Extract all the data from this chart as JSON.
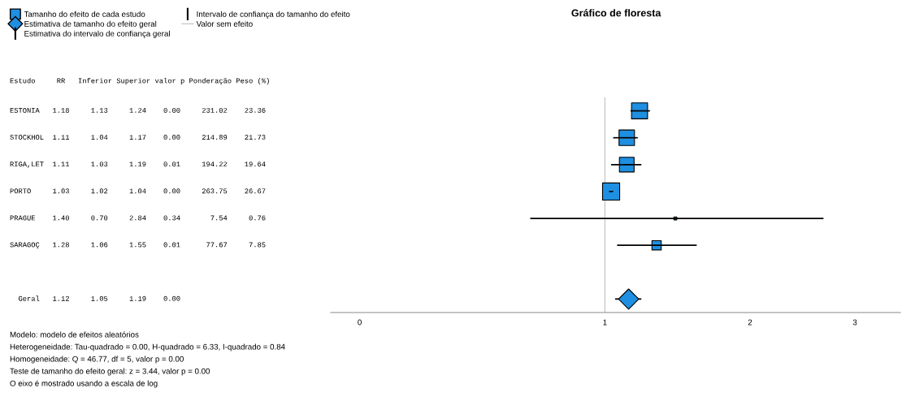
{
  "chart_data": {
    "type": "scatter",
    "title": "Gráfico de floresta",
    "orientation": "horizontal",
    "categories": [
      null,
      null,
      null,
      null,
      null,
      null,
      null,
      null
    ],
    "series": [
      {
        "name": "Tamanho do efeito de cada estudo",
        "type": "bubble",
        "color": "#1e8fe1",
        "marker": "square",
        "values": [
          1.18,
          1.11,
          1.11,
          1.03,
          1.4,
          1.28,
          null,
          null
        ],
        "errors": [
          [
            1.13,
            1.24
          ],
          [
            1.04,
            1.17
          ],
          [
            1.03,
            1.19
          ],
          [
            1.02,
            1.04
          ],
          [
            0.7,
            2.84
          ],
          [
            1.06,
            1.55
          ],
          null,
          null
        ],
        "sizes": [
          0.876,
          0.815,
          0.736,
          1,
          0.028,
          0.294,
          null,
          null
        ]
      },
      {
        "name": "Estimativa de tamanho do efeito geral",
        "color": "#1e8fe1",
        "marker": "diamond",
        "values": [
          null,
          null,
          null,
          null,
          null,
          null,
          null,
          1.12
        ],
        "errors": [
          null,
          null,
          null,
          null,
          null,
          null,
          null,
          [
            1.05,
            1.19
          ]
        ]
      }
    ],
    "log": "x",
    "xlim": [
      0.27,
      4.1
    ],
    "xticks": [
      {
        "value": 0.31,
        "label": "0"
      },
      1,
      2,
      {
        "value": 3.3,
        "label": "3"
      }
    ],
    "tick_labels": "x",
    "grid": false,
    "legend": "top left",
    "ref_lines": [
      {
        "axis": "x",
        "value": 1,
        "label": "Valor sem efeito",
        "color": "#c8c8c8"
      }
    ],
    "annotations": [
      "Intervalo de confiança do tamanho do efeito",
      "Estimativa do intervalo de confiança geral",
      "Estudo     RR   Inferior Superior valor p Ponderação Peso (%)",
      "ESTONIA   1.18     1.13     1.24    0.00     231.02    23.36",
      "STOCKHOL  1.11     1.04     1.17    0.00     214.89    21.73",
      "RIGA,LET  1.11     1.03     1.19    0.01     194.22    19.64",
      "PORTO     1.03     1.02     1.04    0.00     263.75    26.67",
      "PRAGUE    1.40     0.70     2.84    0.34       7.54     0.76",
      "SARAGOÇ   1.28     1.06     1.55    0.01      77.67     7.85",
      "  Geral   1.12     1.05     1.19    0.00",
      "Modelo: modelo de efeitos aleatórios",
      "Heterogeneidade: Tau-quadrado = 0.00, H-quadrado = 6.33, I-quadrado = 0.84",
      "Homogeneidade: Q = 46.77, df = 5, valor p = 0.00",
      "Teste de tamanho do efeito geral: z = 3.44, valor p = 0.00",
      "O eixo é mostrado usando a escala de log"
    ]
  }
}
